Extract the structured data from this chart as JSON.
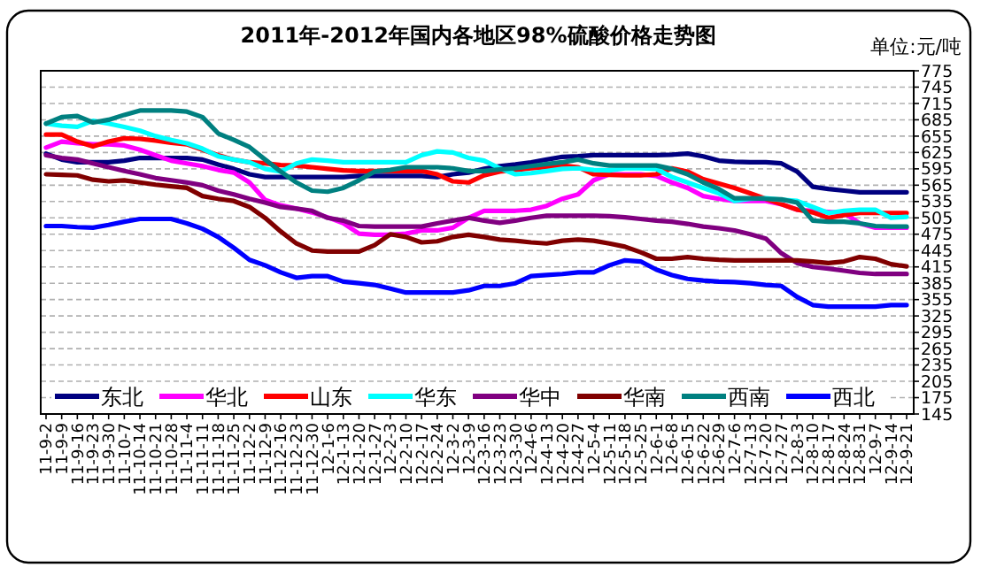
{
  "chart_data": {
    "type": "line",
    "title": "2011年-2012年国内各地区98%硫酸价格走势图",
    "annotations": [
      "单位:元/吨"
    ],
    "categories": [
      "11-9-2",
      "11-9-9",
      "11-9-16",
      "11-9-23",
      "11-9-30",
      "11-10-7",
      "11-10-14",
      "11-10-21",
      "11-10-28",
      "11-11-4",
      "11-11-11",
      "11-11-18",
      "11-11-25",
      "11-12-2",
      "11-12-9",
      "11-12-16",
      "11-12-23",
      "11-12-30",
      "12-1-6",
      "12-1-13",
      "12-1-20",
      "12-1-27",
      "12-2-3",
      "12-2-10",
      "12-2-17",
      "12-2-24",
      "12-3-2",
      "12-3-9",
      "12-3-16",
      "12-3-23",
      "12-3-30",
      "12-4-6",
      "12-4-13",
      "12-4-20",
      "12-4-27",
      "12-5-4",
      "12-5-11",
      "12-5-18",
      "12-5-25",
      "12-6-1",
      "12-6-8",
      "12-6-15",
      "12-6-22",
      "12-6-29",
      "12-7-6",
      "12-7-13",
      "12-7-20",
      "12-7-27",
      "12-8-3",
      "12-8-10",
      "12-8-17",
      "12-8-24",
      "12-8-31",
      "12-9-7",
      "12-9-14",
      "12-9-21"
    ],
    "series": [
      {
        "name": "东北",
        "color": "#000080",
        "values": [
          623,
          612,
          607,
          607,
          607,
          610,
          615,
          615,
          615,
          615,
          612,
          603,
          595,
          585,
          580,
          580,
          580,
          580,
          580,
          580,
          582,
          582,
          582,
          582,
          582,
          580,
          585,
          588,
          595,
          600,
          603,
          607,
          612,
          617,
          618,
          620,
          620,
          620,
          620,
          620,
          621,
          623,
          618,
          610,
          608,
          607,
          607,
          605,
          590,
          562,
          558,
          555,
          552,
          552,
          552,
          552
        ]
      },
      {
        "name": "华北",
        "color": "#ff00ff",
        "values": [
          634,
          645,
          642,
          640,
          640,
          638,
          630,
          620,
          610,
          605,
          600,
          593,
          588,
          570,
          538,
          528,
          522,
          515,
          506,
          495,
          476,
          474,
          474,
          476,
          482,
          482,
          487,
          505,
          518,
          518,
          518,
          520,
          527,
          540,
          548,
          574,
          585,
          585,
          585,
          582,
          570,
          560,
          545,
          540,
          536,
          536,
          536,
          530,
          520,
          518,
          516,
          514,
          495,
          487,
          487,
          487
        ]
      },
      {
        "name": "山东",
        "color": "#ff0000",
        "values": [
          658,
          658,
          645,
          636,
          645,
          651,
          650,
          647,
          643,
          640,
          630,
          620,
          612,
          607,
          605,
          602,
          601,
          598,
          595,
          592,
          591,
          591,
          591,
          591,
          591,
          585,
          572,
          570,
          583,
          590,
          593,
          596,
          598,
          601,
          598,
          585,
          584,
          583,
          583,
          585,
          596,
          590,
          576,
          568,
          560,
          550,
          540,
          530,
          520,
          515,
          505,
          510,
          514,
          514,
          514,
          514
        ]
      },
      {
        "name": "华东",
        "color": "#00ffff",
        "values": [
          678,
          674,
          672,
          683,
          678,
          672,
          665,
          655,
          648,
          642,
          632,
          618,
          612,
          607,
          595,
          590,
          605,
          612,
          610,
          607,
          607,
          607,
          607,
          607,
          620,
          627,
          625,
          615,
          610,
          596,
          585,
          587,
          591,
          595,
          596,
          593,
          592,
          596,
          596,
          595,
          580,
          570,
          560,
          550,
          536,
          540,
          541,
          538,
          536,
          525,
          514,
          518,
          520,
          520,
          505,
          507
        ]
      },
      {
        "name": "华中",
        "color": "#800080",
        "values": [
          620,
          615,
          612,
          605,
          598,
          591,
          585,
          578,
          574,
          570,
          565,
          555,
          548,
          540,
          533,
          525,
          522,
          518,
          505,
          500,
          490,
          489,
          489,
          489,
          489,
          495,
          500,
          505,
          500,
          496,
          500,
          505,
          509,
          509,
          509,
          509,
          508,
          506,
          503,
          500,
          498,
          494,
          489,
          486,
          482,
          475,
          467,
          440,
          422,
          415,
          412,
          408,
          404,
          402,
          402,
          402
        ]
      },
      {
        "name": "华南",
        "color": "#800000",
        "values": [
          585,
          584,
          583,
          575,
          572,
          574,
          570,
          566,
          563,
          560,
          545,
          540,
          536,
          525,
          505,
          480,
          458,
          445,
          443,
          443,
          443,
          455,
          475,
          470,
          460,
          462,
          470,
          474,
          470,
          465,
          463,
          460,
          458,
          463,
          465,
          463,
          458,
          452,
          442,
          430,
          430,
          433,
          430,
          428,
          427,
          427,
          427,
          427,
          427,
          425,
          422,
          425,
          433,
          430,
          420,
          416
        ]
      },
      {
        "name": "西南",
        "color": "#008080",
        "values": [
          678,
          690,
          692,
          680,
          685,
          694,
          702,
          702,
          702,
          700,
          690,
          660,
          648,
          635,
          612,
          590,
          570,
          555,
          553,
          560,
          574,
          590,
          593,
          598,
          598,
          598,
          596,
          591,
          591,
          594,
          596,
          600,
          604,
          607,
          612,
          605,
          601,
          601,
          601,
          601,
          595,
          585,
          570,
          558,
          541,
          541,
          540,
          539,
          533,
          500,
          498,
          498,
          495,
          490,
          489,
          489
        ]
      },
      {
        "name": "西北",
        "color": "#0000ff",
        "values": [
          490,
          490,
          488,
          487,
          492,
          498,
          503,
          503,
          503,
          495,
          485,
          470,
          450,
          428,
          418,
          405,
          395,
          398,
          398,
          388,
          385,
          382,
          375,
          368,
          368,
          368,
          368,
          372,
          380,
          380,
          385,
          398,
          400,
          402,
          405,
          405,
          418,
          427,
          425,
          410,
          400,
          393,
          390,
          388,
          387,
          385,
          382,
          380,
          360,
          345,
          342,
          342,
          342,
          342,
          345,
          345
        ]
      }
    ],
    "ylim": [
      145,
      775
    ],
    "yticks": [
      145,
      175,
      205,
      235,
      265,
      295,
      325,
      355,
      385,
      415,
      445,
      475,
      505,
      535,
      565,
      595,
      625,
      655,
      685,
      715,
      745,
      775
    ],
    "grid": "y",
    "legend": "bottom",
    "line_style": "solid",
    "marker": "none"
  }
}
